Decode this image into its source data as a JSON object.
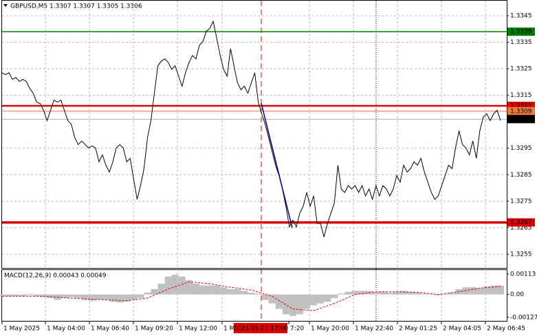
{
  "chart_data": [
    {
      "type": "price",
      "title": "GBPUSD,M5  1.3307 1.3307 1.3305 1.3306",
      "color": "#000000",
      "values": [
        1.33235,
        1.33228,
        1.33235,
        1.3321,
        1.33217,
        1.33202,
        1.3321,
        1.33202,
        1.33176,
        1.33158,
        1.33124,
        1.33119,
        1.33093,
        1.33054,
        1.33093,
        1.33132,
        1.33124,
        1.33132,
        1.33093,
        1.33054,
        1.33041,
        1.3299,
        1.32964,
        1.32977,
        1.32964,
        1.32951,
        1.32959,
        1.32951,
        1.32899,
        1.32925,
        1.32886,
        1.3286,
        1.32899,
        1.32951,
        1.32964,
        1.32951,
        1.32899,
        1.32912,
        1.32835,
        1.32757,
        1.32809,
        1.32873,
        1.3299,
        1.33054,
        1.33158,
        1.33261,
        1.33279,
        1.33287,
        1.33274,
        1.33248,
        1.33261,
        1.33222,
        1.33184,
        1.33235,
        1.33274,
        1.333,
        1.33287,
        1.33339,
        1.33352,
        1.33391,
        1.33403,
        1.33429,
        1.33365,
        1.333,
        1.33248,
        1.33222,
        1.33326,
        1.33261,
        1.33197,
        1.33171,
        1.33184,
        1.33158,
        1.33197,
        1.33235,
        1.33124,
        1.3308,
        1.33041,
        1.3299,
        1.32938,
        1.32886,
        1.32847,
        1.32796,
        1.32731,
        1.32653,
        1.32679,
        1.32653,
        1.32705,
        1.32731,
        1.32783,
        1.32731,
        1.3277,
        1.32666,
        1.32666,
        1.32615,
        1.32666,
        1.32705,
        1.32744,
        1.32886,
        1.32796,
        1.32783,
        1.32809,
        1.32796,
        1.32809,
        1.32783,
        1.32809,
        1.3277,
        1.32796,
        1.32757,
        1.32809,
        1.3277,
        1.32809,
        1.32796,
        1.3277,
        1.32796,
        1.32847,
        1.32822,
        1.32886,
        1.3286,
        1.32873,
        1.32899,
        1.32886,
        1.32912,
        1.3286,
        1.32822,
        1.32783,
        1.32757,
        1.3277,
        1.32809,
        1.32847,
        1.32886,
        1.32873,
        1.32951,
        1.33016,
        1.32964,
        1.32951,
        1.32925,
        1.32977,
        1.32912,
        1.33016,
        1.33067,
        1.3308,
        1.33054,
        1.3308,
        1.33093,
        1.33054
      ],
      "ylim": [
        1.32498,
        1.33507
      ],
      "yticks": [
        1.3345,
        1.3335,
        1.3325,
        1.3315,
        1.3295,
        1.3285,
        1.3275,
        1.3265,
        1.3255
      ],
      "grid": true,
      "levels": [
        {
          "value": 1.3339,
          "color": "#007a00"
        },
        {
          "value": 1.3311,
          "color": "#dd0000"
        },
        {
          "value": 1.3309,
          "color": "#f07a3a"
        },
        {
          "value": 1.3306,
          "color": "#000000"
        },
        {
          "value": 1.3267,
          "color": "#dd0000"
        }
      ],
      "trend_line": {
        "color": "#00008b",
        "values": [
          1.3312,
          1.3265
        ]
      },
      "x_labels": [
        "1 May 2025",
        "1 May 04:00",
        "1 May 06:40",
        "1 May 09:20",
        "1 May 12:00",
        "1 M",
        "7:20",
        "1 May 20:00",
        "1 May 22:40",
        "2 May 01:25",
        "2 May 04:05",
        "2 May 06:45"
      ],
      "marker_label": "2025.05.01 17:00"
    },
    {
      "type": "macd",
      "title": "MACD(12,26,9) 0.00043 0.00049",
      "ylim": [
        -0.00147,
        0.00136
      ],
      "yticks": [
        0.00113,
        {
          "value": 0,
          "label": "0.00"
        },
        -0.00127
      ],
      "histogram": {
        "color": "#c0c0c0",
        "values": [
          -0.0001,
          -0.0001,
          -0.0001,
          -0.0001,
          -5e-05,
          -0.0001,
          -0.00015,
          -0.0002,
          -0.0003,
          -0.0002,
          -0.00015,
          -0.0002,
          -0.0003,
          -0.00035,
          -0.0003,
          -0.0003,
          -0.0004,
          -0.00045,
          -0.0004,
          -0.0003,
          -0.0002,
          0.0001,
          0.0003,
          0.0006,
          0.001,
          0.0011,
          0.001,
          0.0008,
          0.0006,
          0.0005,
          0.0005,
          0.0005,
          0.0004,
          0.0003,
          0.0003,
          0.0002,
          0.0001,
          5e-05,
          -0.0003,
          -0.0005,
          -0.0008,
          -0.0011,
          -0.0012,
          -0.0011,
          -0.0008,
          -0.0006,
          -0.0005,
          -0.0004,
          -0.0002,
          5e-05,
          0.00015,
          0.0002,
          0.0002,
          0.0002,
          0.00015,
          0.00015,
          0.0001,
          0.00015,
          0.0002,
          0.00015,
          0.0001,
          5e-05,
          0,
          -5e-05,
          0,
          0.0001,
          0.0003,
          0.0004,
          0.0004,
          0.00035,
          0.00045,
          0.0005,
          0.0005
        ]
      },
      "signal": {
        "color": "#e00000",
        "values": [
          -0.0001,
          -0.0001,
          -0.0001,
          -0.00018,
          -0.00025,
          -0.0003,
          -0.00035,
          -0.0002,
          0.0003,
          0.0007,
          0.0006,
          0.0004,
          0.00025,
          -0.0001,
          -0.0008,
          -0.0009,
          -0.0005,
          0,
          0.00015,
          0.00015,
          0.00012,
          0,
          0.00015,
          0.00035,
          0.00045
        ]
      }
    }
  ]
}
